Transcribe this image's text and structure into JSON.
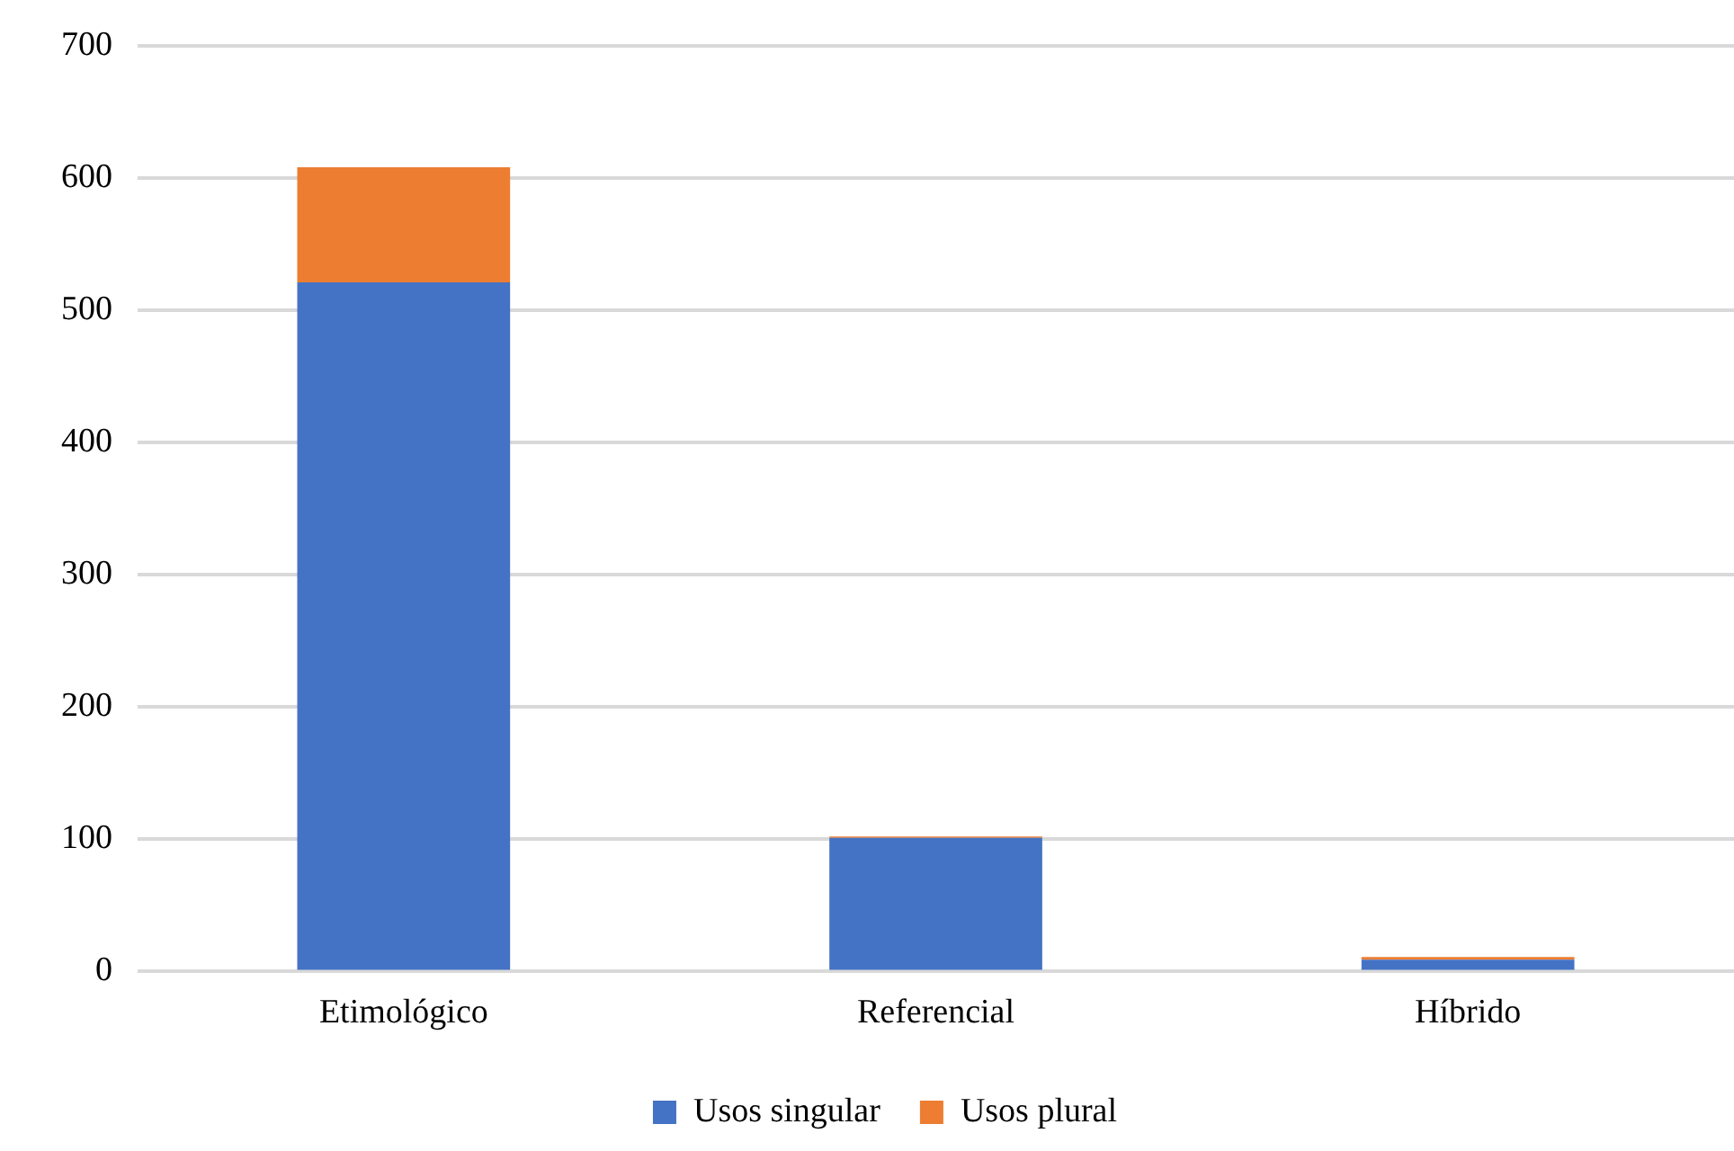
{
  "chart_data": {
    "type": "bar",
    "stacked": true,
    "categories": [
      "Etimológico",
      "Referencial",
      "Híbrido"
    ],
    "series": [
      {
        "name": "Usos singular",
        "color": "#4472c4",
        "values": [
          521,
          101,
          9
        ]
      },
      {
        "name": "Usos plural",
        "color": "#ed7d31",
        "values": [
          87,
          1,
          2
        ]
      }
    ],
    "ylim": [
      0,
      700
    ],
    "yticks": [
      0,
      100,
      200,
      300,
      400,
      500,
      600,
      700
    ],
    "grid": "y",
    "legend": "bottom"
  }
}
